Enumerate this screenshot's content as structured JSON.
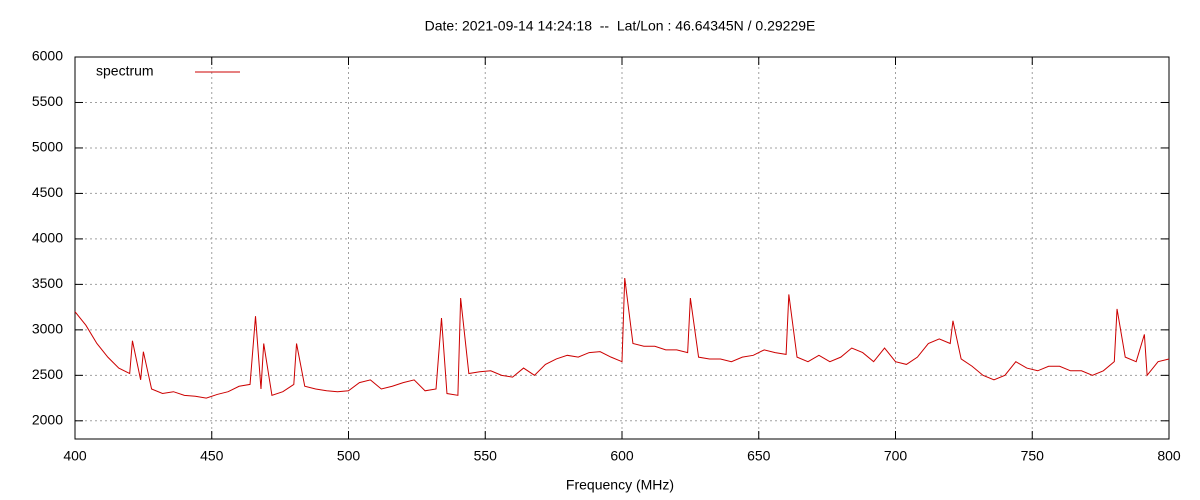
{
  "chart_data": {
    "type": "line",
    "title": "Date: 2021-09-14 14:24:18  --  Lat/Lon : 46.64345N / 0.29229E",
    "xlabel": "Frequency (MHz)",
    "x": [
      400,
      404,
      408,
      412,
      416,
      420,
      421,
      424,
      425,
      428,
      432,
      436,
      440,
      444,
      448,
      452,
      456,
      460,
      464,
      466,
      468,
      469,
      472,
      476,
      480,
      481,
      484,
      488,
      492,
      496,
      500,
      504,
      508,
      512,
      516,
      520,
      524,
      528,
      532,
      534,
      536,
      540,
      541,
      544,
      548,
      552,
      556,
      560,
      564,
      568,
      572,
      576,
      580,
      584,
      588,
      592,
      596,
      600,
      601,
      604,
      608,
      612,
      616,
      620,
      624,
      625,
      628,
      632,
      636,
      640,
      644,
      648,
      652,
      656,
      660,
      661,
      664,
      668,
      672,
      676,
      680,
      684,
      688,
      692,
      696,
      700,
      704,
      708,
      712,
      716,
      720,
      721,
      724,
      728,
      732,
      736,
      740,
      744,
      748,
      752,
      756,
      760,
      764,
      768,
      772,
      776,
      780,
      781,
      784,
      788,
      791,
      792,
      796,
      800
    ],
    "series": [
      {
        "name": "spectrum",
        "color": "#cc0000",
        "values": [
          3200,
          3050,
          2850,
          2700,
          2580,
          2520,
          2880,
          2450,
          2760,
          2350,
          2300,
          2320,
          2280,
          2270,
          2250,
          2290,
          2320,
          2380,
          2400,
          3150,
          2350,
          2850,
          2280,
          2320,
          2400,
          2850,
          2380,
          2350,
          2330,
          2320,
          2330,
          2420,
          2450,
          2350,
          2380,
          2420,
          2450,
          2330,
          2350,
          3130,
          2300,
          2280,
          3350,
          2520,
          2540,
          2550,
          2500,
          2480,
          2580,
          2500,
          2620,
          2680,
          2720,
          2700,
          2750,
          2760,
          2700,
          2650,
          3570,
          2850,
          2820,
          2820,
          2780,
          2780,
          2750,
          3350,
          2700,
          2680,
          2680,
          2650,
          2700,
          2720,
          2780,
          2750,
          2730,
          3390,
          2700,
          2650,
          2720,
          2650,
          2700,
          2800,
          2750,
          2650,
          2800,
          2650,
          2620,
          2700,
          2850,
          2900,
          2850,
          3100,
          2680,
          2600,
          2500,
          2450,
          2500,
          2650,
          2580,
          2550,
          2600,
          2600,
          2550,
          2550,
          2500,
          2550,
          2650,
          3230,
          2700,
          2650,
          2950,
          2500,
          2650,
          2680
        ]
      }
    ],
    "xlim": [
      400,
      800
    ],
    "xticks": [
      400,
      450,
      500,
      550,
      600,
      650,
      700,
      750,
      800
    ],
    "ylim": [
      1800,
      6000
    ],
    "yticks": [
      2000,
      2500,
      3000,
      3500,
      4000,
      4500,
      5000,
      5500,
      6000
    ],
    "grid": true,
    "legend": "upper left"
  }
}
